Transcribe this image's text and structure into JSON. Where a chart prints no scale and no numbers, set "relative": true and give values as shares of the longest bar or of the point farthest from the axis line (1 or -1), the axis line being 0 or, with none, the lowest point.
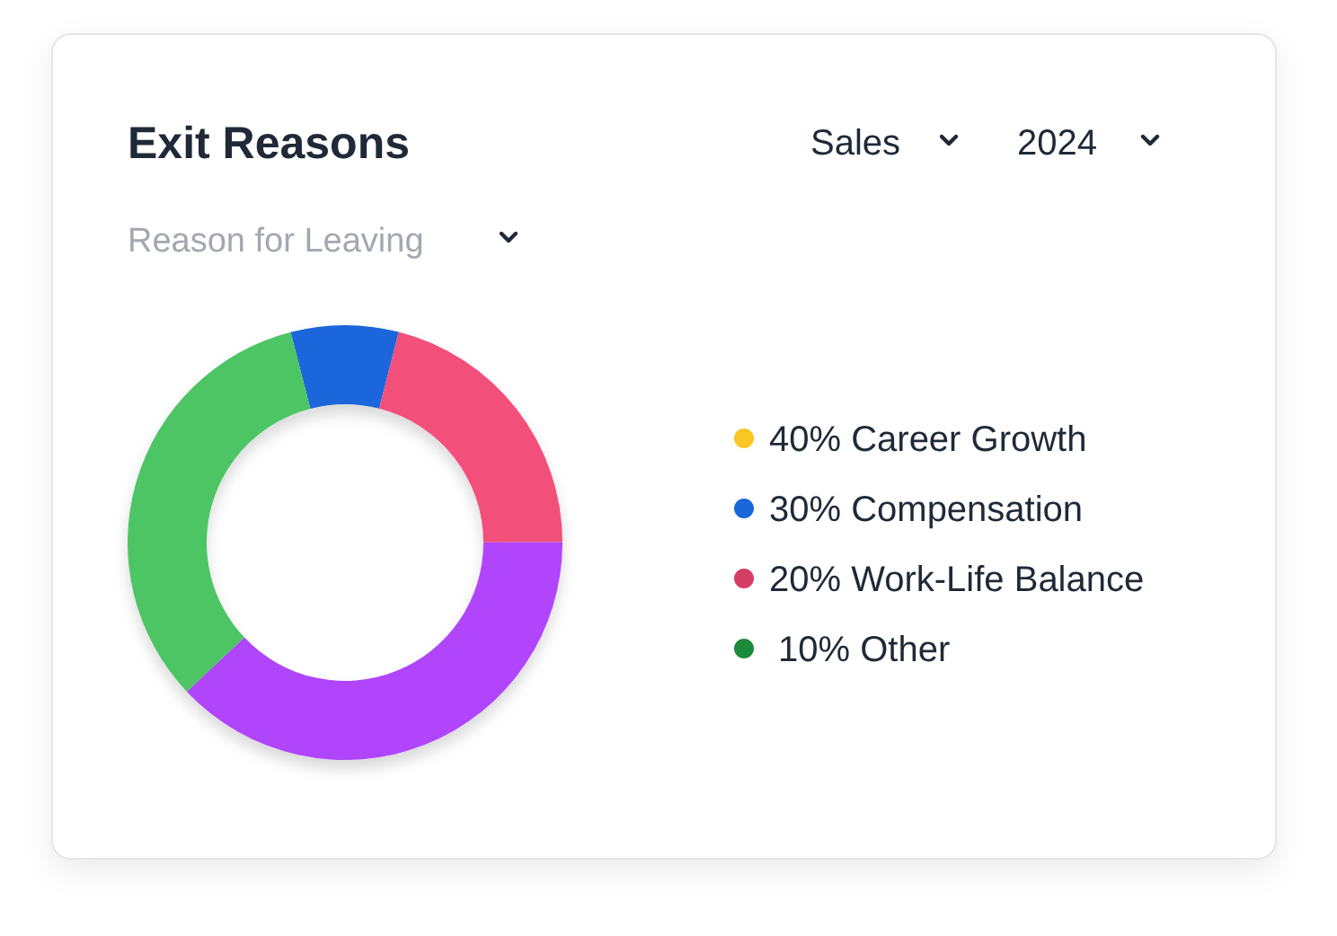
{
  "chart_data": {
    "type": "donut",
    "title": "Exit Reasons",
    "relative": true,
    "categories": [
      null,
      null,
      null,
      null
    ],
    "values": [
      8,
      21,
      38,
      33
    ],
    "colors": [
      "#1a66db",
      "#f2507a",
      "#b044fb",
      "#4ec565"
    ],
    "annotations": [
      "Sales",
      "2024",
      "Reason for Leaving",
      "40% Career Growth",
      "30% Compensation",
      "20% Work-Life Balance",
      "10% Other"
    ]
  }
}
